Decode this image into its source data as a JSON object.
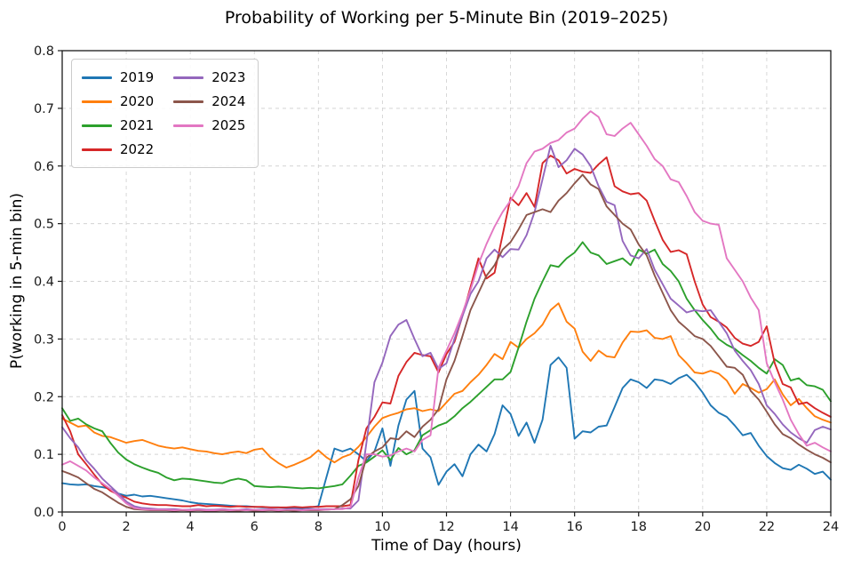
{
  "chart_data": {
    "type": "line",
    "title": "Probability of Working per 5-Minute Bin (2019–2025)",
    "xlabel": "Time of Day (hours)",
    "ylabel": "P(working in 5-min bin)",
    "xlim": [
      0,
      24
    ],
    "ylim": [
      0,
      0.8
    ],
    "xticks": [
      0,
      2,
      4,
      6,
      8,
      10,
      12,
      14,
      16,
      18,
      20,
      22,
      24
    ],
    "xtick_labels": [
      "0",
      "2",
      "4",
      "6",
      "8",
      "10",
      "12",
      "14",
      "16",
      "18",
      "20",
      "22",
      "24"
    ],
    "yticks": [
      0,
      0.1,
      0.2,
      0.3,
      0.4,
      0.5,
      0.6,
      0.7,
      0.8
    ],
    "ytick_labels": [
      "0.0",
      "0.1",
      "0.2",
      "0.3",
      "0.4",
      "0.5",
      "0.6",
      "0.7",
      "0.8"
    ],
    "grid": "dashed",
    "legend_position": "upper-left",
    "legend_columns": 2,
    "line_width": 1.9,
    "x_start": 0,
    "x_step": 0.25,
    "series": [
      {
        "name": "2019",
        "color": "#1f77b4",
        "values": [
          0.05,
          0.048,
          0.047,
          0.048,
          0.045,
          0.043,
          0.04,
          0.032,
          0.028,
          0.03,
          0.027,
          0.028,
          0.026,
          0.024,
          0.022,
          0.02,
          0.017,
          0.015,
          0.014,
          0.013,
          0.012,
          0.011,
          0.01,
          0.01,
          0.009,
          0.008,
          0.008,
          0.008,
          0.007,
          0.007,
          0.007,
          0.008,
          0.01,
          0.06,
          0.11,
          0.105,
          0.11,
          0.1,
          0.088,
          0.105,
          0.145,
          0.08,
          0.15,
          0.195,
          0.21,
          0.11,
          0.095,
          0.047,
          0.07,
          0.083,
          0.062,
          0.1,
          0.117,
          0.105,
          0.135,
          0.185,
          0.17,
          0.132,
          0.155,
          0.12,
          0.16,
          0.255,
          0.268,
          0.25,
          0.127,
          0.14,
          0.138,
          0.148,
          0.15,
          0.182,
          0.215,
          0.23,
          0.225,
          0.215,
          0.23,
          0.228,
          0.222,
          0.232,
          0.238,
          0.225,
          0.207,
          0.185,
          0.172,
          0.165,
          0.15,
          0.133,
          0.137,
          0.115,
          0.097,
          0.085,
          0.076,
          0.073,
          0.082,
          0.075,
          0.066,
          0.07,
          0.056
        ]
      },
      {
        "name": "2020",
        "color": "#ff7f0e",
        "values": [
          0.162,
          0.155,
          0.148,
          0.15,
          0.138,
          0.132,
          0.13,
          0.125,
          0.12,
          0.123,
          0.125,
          0.12,
          0.115,
          0.112,
          0.11,
          0.112,
          0.109,
          0.106,
          0.105,
          0.102,
          0.1,
          0.103,
          0.105,
          0.102,
          0.108,
          0.11,
          0.095,
          0.085,
          0.077,
          0.082,
          0.088,
          0.095,
          0.107,
          0.095,
          0.086,
          0.095,
          0.1,
          0.113,
          0.13,
          0.148,
          0.163,
          0.168,
          0.172,
          0.178,
          0.18,
          0.175,
          0.178,
          0.175,
          0.19,
          0.205,
          0.21,
          0.225,
          0.238,
          0.255,
          0.274,
          0.265,
          0.295,
          0.285,
          0.3,
          0.31,
          0.325,
          0.35,
          0.362,
          0.33,
          0.318,
          0.278,
          0.262,
          0.28,
          0.27,
          0.268,
          0.294,
          0.313,
          0.312,
          0.315,
          0.302,
          0.3,
          0.305,
          0.272,
          0.258,
          0.242,
          0.24,
          0.245,
          0.24,
          0.228,
          0.205,
          0.222,
          0.215,
          0.207,
          0.213,
          0.23,
          0.204,
          0.185,
          0.196,
          0.18,
          0.166,
          0.16,
          0.155
        ]
      },
      {
        "name": "2021",
        "color": "#2ca02c",
        "values": [
          0.18,
          0.158,
          0.162,
          0.152,
          0.145,
          0.14,
          0.12,
          0.103,
          0.091,
          0.083,
          0.077,
          0.072,
          0.068,
          0.06,
          0.055,
          0.058,
          0.057,
          0.055,
          0.053,
          0.051,
          0.05,
          0.055,
          0.058,
          0.055,
          0.045,
          0.044,
          0.043,
          0.044,
          0.043,
          0.042,
          0.041,
          0.042,
          0.041,
          0.043,
          0.045,
          0.048,
          0.063,
          0.08,
          0.086,
          0.096,
          0.107,
          0.09,
          0.111,
          0.1,
          0.107,
          0.133,
          0.142,
          0.15,
          0.155,
          0.166,
          0.18,
          0.191,
          0.204,
          0.217,
          0.23,
          0.23,
          0.243,
          0.285,
          0.33,
          0.37,
          0.4,
          0.428,
          0.425,
          0.44,
          0.45,
          0.468,
          0.45,
          0.445,
          0.43,
          0.435,
          0.44,
          0.428,
          0.455,
          0.448,
          0.455,
          0.43,
          0.418,
          0.4,
          0.37,
          0.35,
          0.333,
          0.318,
          0.3,
          0.29,
          0.283,
          0.272,
          0.262,
          0.25,
          0.24,
          0.265,
          0.255,
          0.228,
          0.232,
          0.22,
          0.218,
          0.212,
          0.192
        ]
      },
      {
        "name": "2022",
        "color": "#d62728",
        "values": [
          0.168,
          0.14,
          0.1,
          0.083,
          0.065,
          0.048,
          0.037,
          0.03,
          0.025,
          0.018,
          0.015,
          0.013,
          0.012,
          0.012,
          0.011,
          0.01,
          0.01,
          0.012,
          0.01,
          0.011,
          0.01,
          0.009,
          0.01,
          0.009,
          0.009,
          0.009,
          0.008,
          0.008,
          0.008,
          0.009,
          0.008,
          0.009,
          0.009,
          0.01,
          0.01,
          0.01,
          0.012,
          0.09,
          0.145,
          0.165,
          0.19,
          0.188,
          0.236,
          0.26,
          0.276,
          0.272,
          0.27,
          0.242,
          0.274,
          0.295,
          0.34,
          0.39,
          0.44,
          0.405,
          0.415,
          0.48,
          0.545,
          0.532,
          0.553,
          0.529,
          0.605,
          0.618,
          0.61,
          0.587,
          0.595,
          0.59,
          0.588,
          0.603,
          0.615,
          0.565,
          0.556,
          0.551,
          0.553,
          0.54,
          0.505,
          0.472,
          0.451,
          0.454,
          0.447,
          0.4,
          0.36,
          0.338,
          0.33,
          0.32,
          0.302,
          0.292,
          0.288,
          0.295,
          0.322,
          0.258,
          0.222,
          0.216,
          0.187,
          0.19,
          0.18,
          0.172,
          0.165
        ]
      },
      {
        "name": "2023",
        "color": "#9467bd",
        "values": [
          0.147,
          0.128,
          0.112,
          0.09,
          0.075,
          0.058,
          0.045,
          0.032,
          0.018,
          0.01,
          0.007,
          0.006,
          0.005,
          0.005,
          0.005,
          0.004,
          0.004,
          0.005,
          0.004,
          0.004,
          0.005,
          0.004,
          0.004,
          0.005,
          0.004,
          0.004,
          0.005,
          0.004,
          0.004,
          0.005,
          0.004,
          0.005,
          0.005,
          0.005,
          0.005,
          0.006,
          0.006,
          0.02,
          0.12,
          0.225,
          0.259,
          0.305,
          0.325,
          0.333,
          0.3,
          0.27,
          0.276,
          0.248,
          0.258,
          0.3,
          0.34,
          0.378,
          0.4,
          0.44,
          0.455,
          0.442,
          0.456,
          0.455,
          0.48,
          0.52,
          0.577,
          0.635,
          0.598,
          0.61,
          0.63,
          0.62,
          0.6,
          0.565,
          0.538,
          0.532,
          0.47,
          0.445,
          0.44,
          0.456,
          0.42,
          0.395,
          0.37,
          0.358,
          0.346,
          0.35,
          0.348,
          0.35,
          0.33,
          0.31,
          0.28,
          0.262,
          0.246,
          0.222,
          0.185,
          0.17,
          0.152,
          0.138,
          0.128,
          0.12,
          0.142,
          0.148,
          0.143
        ]
      },
      {
        "name": "2024",
        "color": "#8c564b",
        "values": [
          0.071,
          0.066,
          0.06,
          0.05,
          0.04,
          0.034,
          0.025,
          0.016,
          0.009,
          0.005,
          0.004,
          0.003,
          0.003,
          0.003,
          0.002,
          0.003,
          0.002,
          0.003,
          0.002,
          0.002,
          0.003,
          0.002,
          0.002,
          0.003,
          0.002,
          0.002,
          0.003,
          0.002,
          0.003,
          0.002,
          0.003,
          0.003,
          0.003,
          0.004,
          0.005,
          0.012,
          0.022,
          0.045,
          0.094,
          0.105,
          0.112,
          0.128,
          0.126,
          0.14,
          0.13,
          0.148,
          0.16,
          0.178,
          0.23,
          0.262,
          0.305,
          0.35,
          0.38,
          0.41,
          0.428,
          0.455,
          0.468,
          0.49,
          0.515,
          0.52,
          0.525,
          0.52,
          0.54,
          0.553,
          0.57,
          0.585,
          0.568,
          0.56,
          0.53,
          0.515,
          0.5,
          0.49,
          0.464,
          0.445,
          0.41,
          0.38,
          0.35,
          0.33,
          0.318,
          0.305,
          0.3,
          0.288,
          0.27,
          0.252,
          0.25,
          0.238,
          0.21,
          0.195,
          0.174,
          0.152,
          0.135,
          0.128,
          0.117,
          0.108,
          0.1,
          0.094,
          0.086
        ]
      },
      {
        "name": "2025",
        "color": "#e377c2",
        "values": [
          0.082,
          0.088,
          0.08,
          0.072,
          0.06,
          0.05,
          0.04,
          0.028,
          0.015,
          0.007,
          0.005,
          0.004,
          0.004,
          0.004,
          0.003,
          0.004,
          0.003,
          0.004,
          0.003,
          0.003,
          0.004,
          0.003,
          0.004,
          0.003,
          0.004,
          0.003,
          0.004,
          0.003,
          0.004,
          0.004,
          0.003,
          0.004,
          0.004,
          0.004,
          0.005,
          0.005,
          0.008,
          0.06,
          0.1,
          0.1,
          0.096,
          0.098,
          0.105,
          0.11,
          0.105,
          0.125,
          0.133,
          0.25,
          0.28,
          0.31,
          0.345,
          0.385,
          0.43,
          0.465,
          0.495,
          0.52,
          0.54,
          0.565,
          0.605,
          0.625,
          0.63,
          0.64,
          0.645,
          0.658,
          0.665,
          0.682,
          0.695,
          0.685,
          0.655,
          0.652,
          0.665,
          0.675,
          0.655,
          0.635,
          0.612,
          0.6,
          0.577,
          0.572,
          0.548,
          0.52,
          0.505,
          0.5,
          0.498,
          0.44,
          0.42,
          0.4,
          0.372,
          0.35,
          0.258,
          0.225,
          0.195,
          0.16,
          0.135,
          0.115,
          0.12,
          0.112,
          0.105
        ]
      }
    ]
  }
}
